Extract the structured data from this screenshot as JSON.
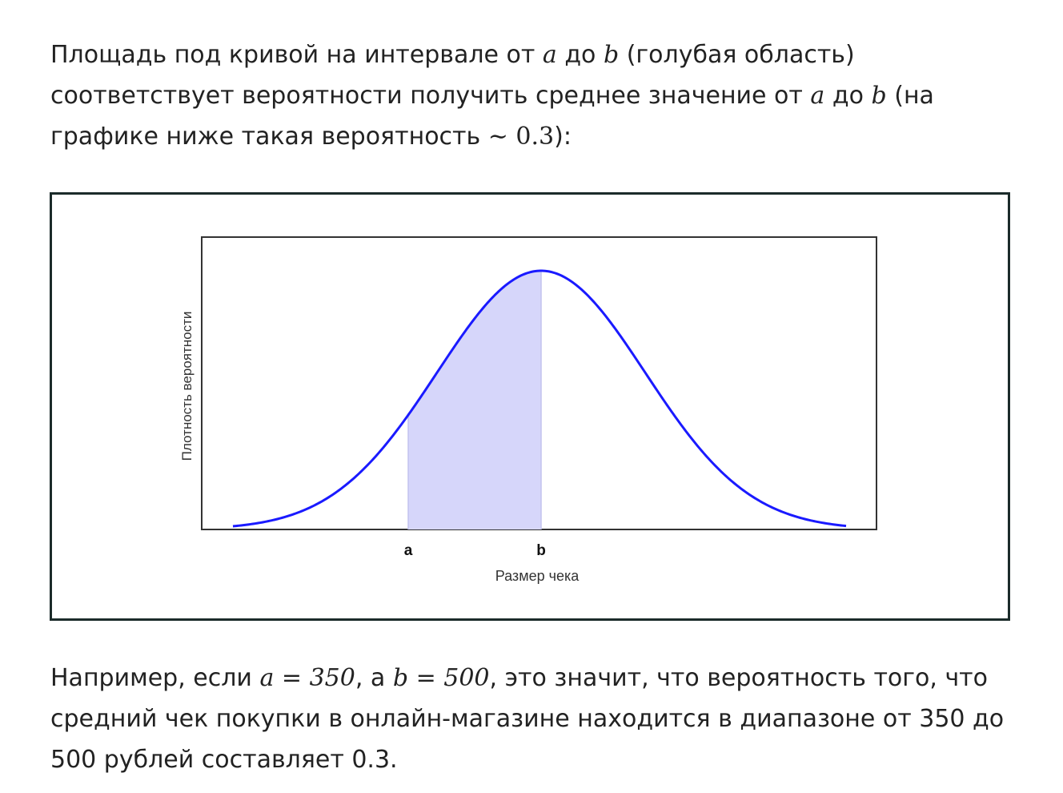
{
  "intro": {
    "t1": "Площадь под кривой на интервале от ",
    "a1": "a",
    "t2": " до ",
    "b1": "b",
    "t3": " (голубая область) соответствует вероятности получить среднее значение от ",
    "a2": "a",
    "t4": " до ",
    "b2": "b",
    "t5": " (на графике ниже такая вероятность ",
    "approx": "∼ 0.3",
    "t6": "):"
  },
  "chart_data": {
    "type": "area",
    "xlabel": "Размер чека",
    "ylabel": "Плотность вероятности",
    "x_tick_labels": [
      "a",
      "b"
    ],
    "curve": "normal",
    "shaded_interval": [
      "a",
      "b"
    ],
    "colors": {
      "curve": "#1a1aff",
      "fill": "#d6d6fa",
      "frame": "#1b2b2a"
    }
  },
  "example": {
    "t1": "Например, если ",
    "eq_a": "a = 350",
    "t2": ", а ",
    "eq_b": "b = 500",
    "t3": ", это значит, что вероятность того, что средний чек покупки в онлайн-магазине находится в диапазоне от 350 до 500 рублей составляет 0.3."
  }
}
